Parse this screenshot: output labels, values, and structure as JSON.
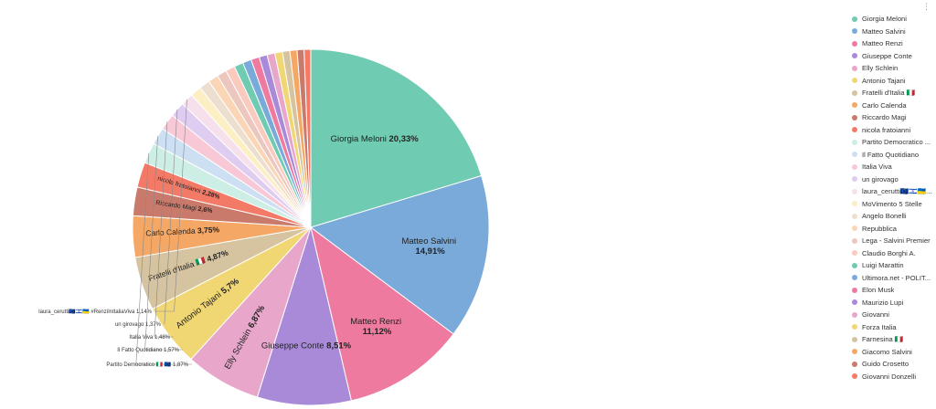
{
  "chart_data": {
    "type": "pie",
    "categories": [
      "Giorgia Meloni",
      "Matteo Salvini",
      "Matteo Renzi",
      "Giuseppe Conte",
      "Elly Schlein",
      "Antonio Tajani",
      "Fratelli d'Italia 🇮🇹",
      "Carlo Calenda",
      "Riccardo Magi",
      "nicola fratoianni",
      "Partito Democratico 🇮🇹 🇪🇺",
      "Il Fatto Quotidiano",
      "Italia Viva",
      "un girovago",
      "laura_cerutti🇪🇺🇮🇱🇺🇦 #RenziInItaliaViva",
      "MoVimento 5 Stelle",
      "Angelo Bonelli",
      "Repubblica",
      "Lega - Salvini Premier",
      "Claudio Borghi A.",
      "Luigi Marattin",
      "Ultimora.net - POLITICA",
      "Elon Musk",
      "Maurizio Lupi",
      "Giovanni",
      "Forza Italia",
      "Farnesina 🇮🇹",
      "Giacomo Salvini",
      "Guido Crosetto",
      "Giovanni Donzelli"
    ],
    "values": [
      20.33,
      14.91,
      11.12,
      8.51,
      6.87,
      5.7,
      4.87,
      3.75,
      2.6,
      2.28,
      1.87,
      1.57,
      1.48,
      1.37,
      1.14,
      1.0,
      0.96,
      0.92,
      0.88,
      0.85,
      0.82,
      0.79,
      0.76,
      0.73,
      0.71,
      0.69,
      0.67,
      0.65,
      0.63,
      0.6
    ],
    "colors": [
      "#6fcbb1",
      "#7aaad9",
      "#ee7aa0",
      "#a98ad8",
      "#e8a6cb",
      "#f0d774",
      "#d6c3a0",
      "#f5a866",
      "#c97a6b",
      "#f47a68",
      "#cdeee5",
      "#cde0f3",
      "#f9c8d6",
      "#dfcdf1",
      "#f5e0ec",
      "#fbefc3",
      "#ecdfcf",
      "#fbd6b6",
      "#ecc7bf",
      "#fbcabf",
      "#6fcbb1",
      "#7aaad9",
      "#ee7aa0",
      "#a98ad8",
      "#e8a6cb",
      "#f0d774",
      "#d6c3a0",
      "#f5a866",
      "#c97a6b",
      "#f47a68"
    ],
    "slice_labels": [
      {
        "name": "Giorgia Meloni",
        "value": "20,33%"
      },
      {
        "name": "Matteo Salvini",
        "value": "14,91%"
      },
      {
        "name": "Matteo Renzi",
        "value": "11,12%"
      },
      {
        "name": "Giuseppe Conte",
        "value": "8,51%"
      },
      {
        "name": "Elly Schlein",
        "value": "6,87%"
      },
      {
        "name": "Antonio Tajani",
        "value": "5,7%"
      },
      {
        "name": "Fratelli d'Italia 🇮🇹",
        "value": "4,87%"
      },
      {
        "name": "Carlo Calenda",
        "value": "3,75%"
      },
      {
        "name": "Riccardo Magi",
        "value": "2,6%"
      },
      {
        "name": "nicola fratoianni",
        "value": "2,28%"
      }
    ],
    "outside_labels": [
      {
        "text": "laura_cerutti🇪🇺🇮🇱🇺🇦 #RenziInItaliaViva",
        "value": "1,14%"
      },
      {
        "text": "un girovago",
        "value": "1,37%"
      },
      {
        "text": "Italia Viva",
        "value": "1,48%"
      },
      {
        "text": "Il Fatto Quotidiano",
        "value": "1,57%"
      },
      {
        "text": "Partito Democratico 🇮🇹 🇪🇺",
        "value": "1,87%"
      }
    ],
    "legend": [
      "Giorgia Meloni",
      "Matteo Salvini",
      "Matteo Renzi",
      "Giuseppe Conte",
      "Elly Schlein",
      "Antonio Tajani",
      "Fratelli d'Italia 🇮🇹",
      "Carlo Calenda",
      "Riccardo Magi",
      "nicola fratoianni",
      "Partito Democratico ...",
      "Il Fatto Quotidiano",
      "Italia Viva",
      "un girovago",
      "laura_cerutti🇪🇺🇮🇱🇺🇦...",
      "MoVimento 5 Stelle",
      "Angelo Bonelli",
      "Repubblica",
      "Lega - Salvini Premier",
      "Claudio Borghi A.",
      "Luigi Marattin",
      "Ultimora.net - POLIT...",
      "Elon Musk",
      "Maurizio Lupi",
      "Giovanni",
      "Forza Italia",
      "Farnesina 🇮🇹",
      "Giacomo Salvini",
      "Guido Crosetto",
      "Giovanni Donzelli"
    ],
    "legend_placement": "right"
  }
}
